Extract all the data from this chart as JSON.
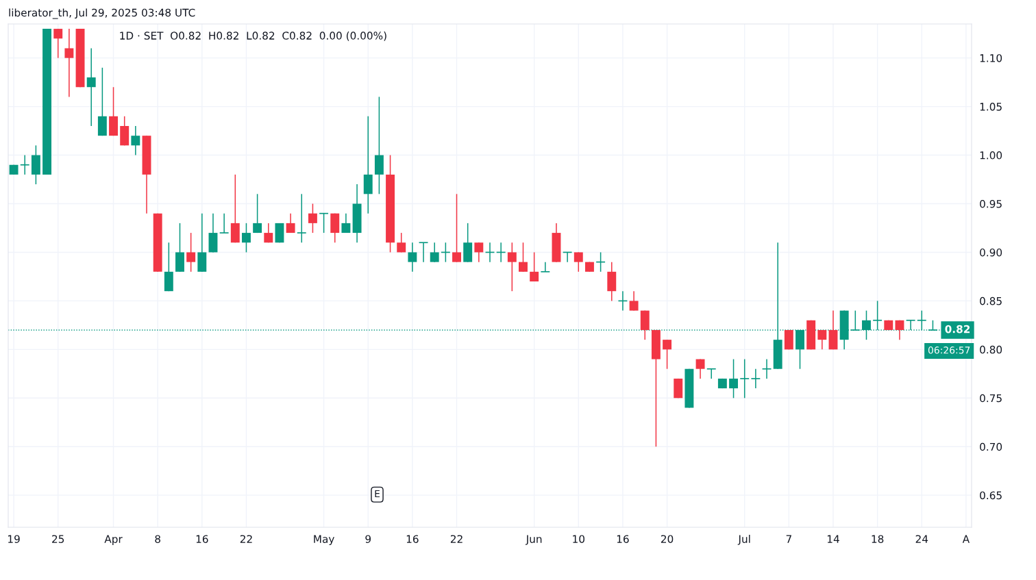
{
  "chart_data": {
    "type": "candlestick",
    "title": "1D · SET  O0.82  H0.82  L0.82  C0.82  0.00 (0.00%)",
    "annotations": [
      "liberator_th, Jul 29, 2025 03:48 UTC",
      "E",
      "06:26:57"
    ],
    "categories": [
      "19",
      null,
      null,
      null,
      "25",
      null,
      null,
      null,
      null,
      "Apr",
      null,
      null,
      null,
      "8",
      null,
      null,
      null,
      "16",
      null,
      null,
      null,
      "22",
      null,
      null,
      null,
      null,
      null,
      null,
      "May",
      null,
      null,
      null,
      "9",
      null,
      null,
      null,
      "16",
      null,
      null,
      null,
      "22",
      null,
      null,
      null,
      null,
      null,
      null,
      "Jun",
      null,
      null,
      null,
      "10",
      null,
      null,
      null,
      "16",
      null,
      null,
      null,
      "20",
      null,
      null,
      null,
      null,
      null,
      null,
      "Jul",
      null,
      null,
      null,
      "7",
      null,
      null,
      null,
      "14",
      null,
      null,
      null,
      "18",
      null,
      null,
      null,
      "24",
      null,
      null,
      null,
      "A"
    ],
    "ohlc": [
      [
        0.98,
        0.99,
        0.98,
        0.99
      ],
      [
        0.99,
        1.0,
        0.98,
        0.99
      ],
      [
        0.98,
        1.01,
        0.97,
        1.0
      ],
      [
        0.98,
        1.13,
        0.98,
        1.13
      ],
      [
        1.13,
        1.13,
        1.1,
        1.12
      ],
      [
        1.11,
        1.13,
        1.06,
        1.1
      ],
      [
        1.13,
        1.13,
        1.07,
        1.07
      ],
      [
        1.07,
        1.11,
        1.03,
        1.08
      ],
      [
        1.02,
        1.09,
        1.02,
        1.04
      ],
      [
        1.04,
        1.07,
        1.02,
        1.02
      ],
      [
        1.03,
        1.04,
        1.01,
        1.01
      ],
      [
        1.01,
        1.03,
        1.0,
        1.02
      ],
      [
        1.02,
        1.02,
        0.94,
        0.98
      ],
      [
        0.94,
        0.94,
        0.88,
        0.88
      ],
      [
        0.86,
        0.91,
        0.86,
        0.88
      ],
      [
        0.88,
        0.93,
        0.88,
        0.9
      ],
      [
        0.9,
        0.92,
        0.88,
        0.89
      ],
      [
        0.88,
        0.94,
        0.88,
        0.9
      ],
      [
        0.9,
        0.94,
        0.9,
        0.92
      ],
      [
        0.92,
        0.94,
        0.92,
        0.92
      ],
      [
        0.93,
        0.98,
        0.91,
        0.91
      ],
      [
        0.91,
        0.93,
        0.9,
        0.92
      ],
      [
        0.92,
        0.96,
        0.92,
        0.93
      ],
      [
        0.92,
        0.93,
        0.91,
        0.91
      ],
      [
        0.91,
        0.93,
        0.91,
        0.93
      ],
      [
        0.93,
        0.94,
        0.92,
        0.92
      ],
      [
        0.92,
        0.96,
        0.91,
        0.92
      ],
      [
        0.94,
        0.95,
        0.92,
        0.93
      ],
      [
        0.94,
        0.94,
        0.92,
        0.94
      ],
      [
        0.94,
        0.94,
        0.91,
        0.92
      ],
      [
        0.92,
        0.94,
        0.92,
        0.93
      ],
      [
        0.92,
        0.97,
        0.91,
        0.95
      ],
      [
        0.96,
        1.04,
        0.94,
        0.98
      ],
      [
        0.98,
        1.06,
        0.96,
        1.0
      ],
      [
        0.98,
        1.0,
        0.9,
        0.91
      ],
      [
        0.91,
        0.92,
        0.9,
        0.9
      ],
      [
        0.89,
        0.91,
        0.88,
        0.9
      ],
      [
        0.91,
        0.91,
        0.89,
        0.91
      ],
      [
        0.89,
        0.91,
        0.89,
        0.9
      ],
      [
        0.9,
        0.91,
        0.89,
        0.9
      ],
      [
        0.9,
        0.96,
        0.89,
        0.89
      ],
      [
        0.89,
        0.93,
        0.89,
        0.91
      ],
      [
        0.91,
        0.91,
        0.89,
        0.9
      ],
      [
        0.9,
        0.91,
        0.89,
        0.9
      ],
      [
        0.9,
        0.91,
        0.89,
        0.9
      ],
      [
        0.9,
        0.91,
        0.86,
        0.89
      ],
      [
        0.89,
        0.91,
        0.88,
        0.88
      ],
      [
        0.88,
        0.9,
        0.87,
        0.87
      ],
      [
        0.88,
        0.89,
        0.88,
        0.88
      ],
      [
        0.92,
        0.93,
        0.89,
        0.89
      ],
      [
        0.9,
        0.9,
        0.89,
        0.9
      ],
      [
        0.9,
        0.9,
        0.88,
        0.89
      ],
      [
        0.89,
        0.89,
        0.88,
        0.88
      ],
      [
        0.89,
        0.9,
        0.88,
        0.89
      ],
      [
        0.88,
        0.89,
        0.85,
        0.86
      ],
      [
        0.85,
        0.86,
        0.84,
        0.85
      ],
      [
        0.85,
        0.86,
        0.84,
        0.84
      ],
      [
        0.84,
        0.84,
        0.81,
        0.82
      ],
      [
        0.82,
        0.82,
        0.7,
        0.79
      ],
      [
        0.81,
        0.81,
        0.78,
        0.8
      ],
      [
        0.77,
        0.77,
        0.75,
        0.75
      ],
      [
        0.74,
        0.78,
        0.74,
        0.78
      ],
      [
        0.79,
        0.79,
        0.77,
        0.78
      ],
      [
        0.78,
        0.78,
        0.77,
        0.78
      ],
      [
        0.76,
        0.77,
        0.76,
        0.77
      ],
      [
        0.76,
        0.79,
        0.75,
        0.77
      ],
      [
        0.77,
        0.79,
        0.75,
        0.77
      ],
      [
        0.77,
        0.78,
        0.76,
        0.77
      ],
      [
        0.78,
        0.79,
        0.77,
        0.78
      ],
      [
        0.78,
        0.91,
        0.78,
        0.81
      ],
      [
        0.82,
        0.82,
        0.8,
        0.8
      ],
      [
        0.8,
        0.82,
        0.78,
        0.82
      ],
      [
        0.83,
        0.83,
        0.8,
        0.8
      ],
      [
        0.82,
        0.82,
        0.8,
        0.81
      ],
      [
        0.82,
        0.84,
        0.8,
        0.8
      ],
      [
        0.81,
        0.84,
        0.8,
        0.84
      ],
      [
        0.82,
        0.84,
        0.82,
        0.82
      ],
      [
        0.82,
        0.84,
        0.81,
        0.83
      ],
      [
        0.83,
        0.85,
        0.82,
        0.83
      ],
      [
        0.83,
        0.83,
        0.82,
        0.82
      ],
      [
        0.83,
        0.83,
        0.81,
        0.82
      ],
      [
        0.83,
        0.83,
        0.82,
        0.83
      ],
      [
        0.83,
        0.84,
        0.82,
        0.83
      ],
      [
        0.82,
        0.83,
        0.82,
        0.82
      ],
      null,
      null,
      null
    ],
    "colors": [
      "#089981",
      "#089981",
      "#089981",
      "#089981",
      "#f23645",
      "#f23645",
      "#f23645",
      "#089981",
      "#089981",
      "#f23645",
      "#f23645",
      "#089981",
      "#f23645",
      "#f23645",
      "#089981",
      "#089981",
      "#f23645",
      "#089981",
      "#089981",
      "#089981",
      "#f23645",
      "#089981",
      "#089981",
      "#f23645",
      "#089981",
      "#f23645",
      "#089981",
      "#f23645",
      "#089981",
      "#f23645",
      "#089981",
      "#089981",
      "#089981",
      "#089981",
      "#f23645",
      "#f23645",
      "#089981",
      "#089981",
      "#089981",
      "#089981",
      "#f23645",
      "#089981",
      "#f23645",
      "#089981",
      "#089981",
      "#f23645",
      "#f23645",
      "#f23645",
      "#089981",
      "#f23645",
      "#089981",
      "#f23645",
      "#f23645",
      "#089981",
      "#f23645",
      "#089981",
      "#f23645",
      "#f23645",
      "#f23645",
      "#f23645",
      "#f23645",
      "#089981",
      "#f23645",
      "#089981",
      "#089981",
      "#089981",
      "#089981",
      "#089981",
      "#089981",
      "#089981",
      "#f23645",
      "#089981",
      "#f23645",
      "#f23645",
      "#f23645",
      "#089981",
      "#089981",
      "#089981",
      "#089981",
      "#f23645",
      "#f23645",
      "#089981",
      "#089981",
      "#089981",
      null,
      null,
      null
    ],
    "ylim": [
      0.617,
      1.135
    ],
    "yticks": [
      {
        "value": 0.65,
        "label": "0.65"
      },
      {
        "value": 0.7,
        "label": "0.70"
      },
      {
        "value": 0.75,
        "label": "0.75"
      },
      {
        "value": 0.8,
        "label": "0.80"
      },
      {
        "value": 0.85,
        "label": "0.85"
      },
      {
        "value": 0.9,
        "label": "0.90"
      },
      {
        "value": 0.95,
        "label": "0.95"
      },
      {
        "value": 1.0,
        "label": "1.00"
      },
      {
        "value": 1.05,
        "label": "1.05"
      },
      {
        "value": 1.1,
        "label": "1.10"
      }
    ],
    "ref_lines": [
      {
        "axis": "y",
        "value": 0.82,
        "label": "0.82",
        "color": "#089981",
        "line_style": "dotted"
      }
    ],
    "grid": true,
    "legend": false
  }
}
